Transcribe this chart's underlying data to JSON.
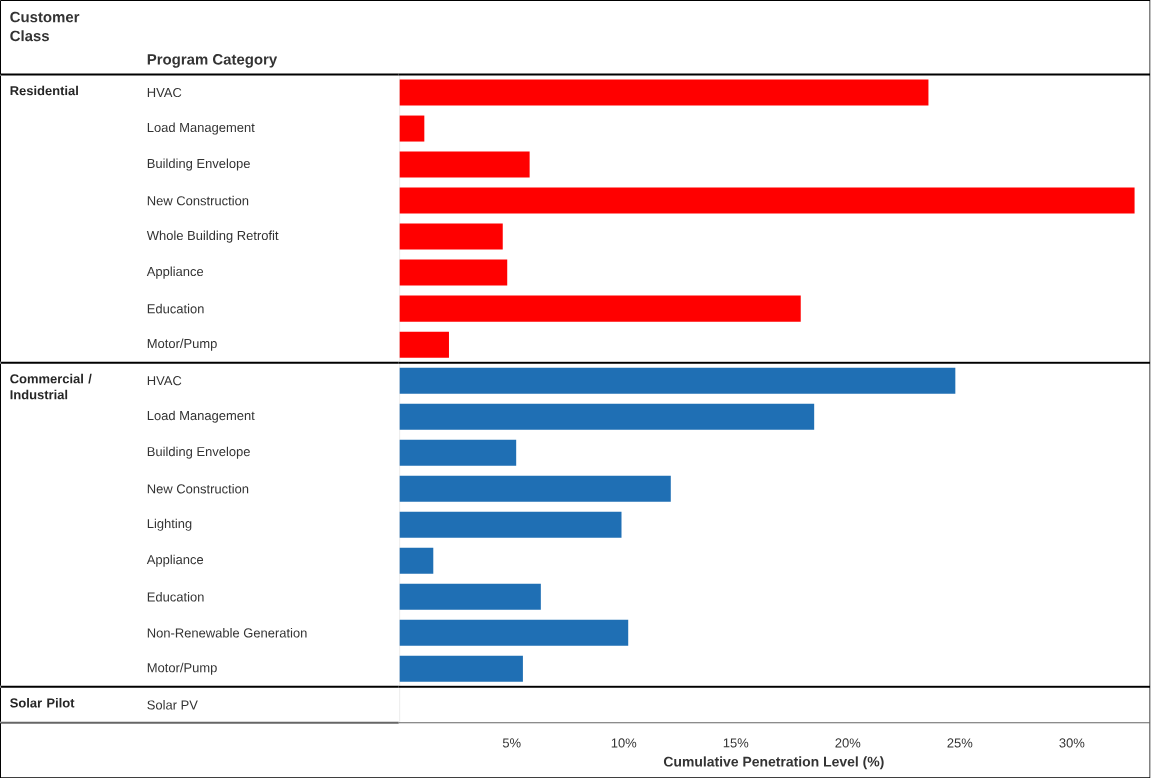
{
  "chart_data": {
    "type": "bar",
    "orientation": "horizontal",
    "legend_title": "Customer Class",
    "ylabel": "Program Category",
    "xlabel": "Cumulative Penetration Level (%)",
    "annotations": [
      "Residential",
      "Commercial / Industrial",
      "Solar Pilot"
    ],
    "categories": [
      "HVAC",
      "Load Management",
      "Building Envelope",
      "New Construction",
      "Whole Building Retrofit",
      "Appliance",
      "Education",
      "Motor/Pump",
      "HVAC",
      "Load Management",
      "Building Envelope",
      "New Construction",
      "Lighting",
      "Appliance",
      "Education",
      "Non-Renewable Generation",
      "Motor/Pump",
      "Solar PV"
    ],
    "series": [
      {
        "color": "#ff0000",
        "values": [
          23.6,
          1.1,
          5.8,
          32.8,
          4.6,
          4.8,
          17.9,
          2.2,
          null,
          null,
          null,
          null,
          null,
          null,
          null,
          null,
          null,
          null
        ]
      },
      {
        "color": "#1f6fb4",
        "values": [
          null,
          null,
          null,
          null,
          null,
          null,
          null,
          null,
          24.8,
          18.5,
          5.2,
          12.1,
          9.9,
          1.5,
          6.3,
          10.2,
          5.5,
          null
        ]
      },
      {
        "values": [
          null,
          null,
          null,
          null,
          null,
          null,
          null,
          null,
          null,
          null,
          null,
          null,
          null,
          null,
          null,
          null,
          null,
          0
        ]
      }
    ],
    "xlim": [
      0,
      33.4
    ],
    "xticks": [
      {
        "value": 5,
        "label": "5%"
      },
      {
        "value": 10,
        "label": "10%"
      },
      {
        "value": 15,
        "label": "15%"
      },
      {
        "value": 20,
        "label": "20%"
      },
      {
        "value": 25,
        "label": "25%"
      },
      {
        "value": 30,
        "label": "30%"
      }
    ]
  }
}
